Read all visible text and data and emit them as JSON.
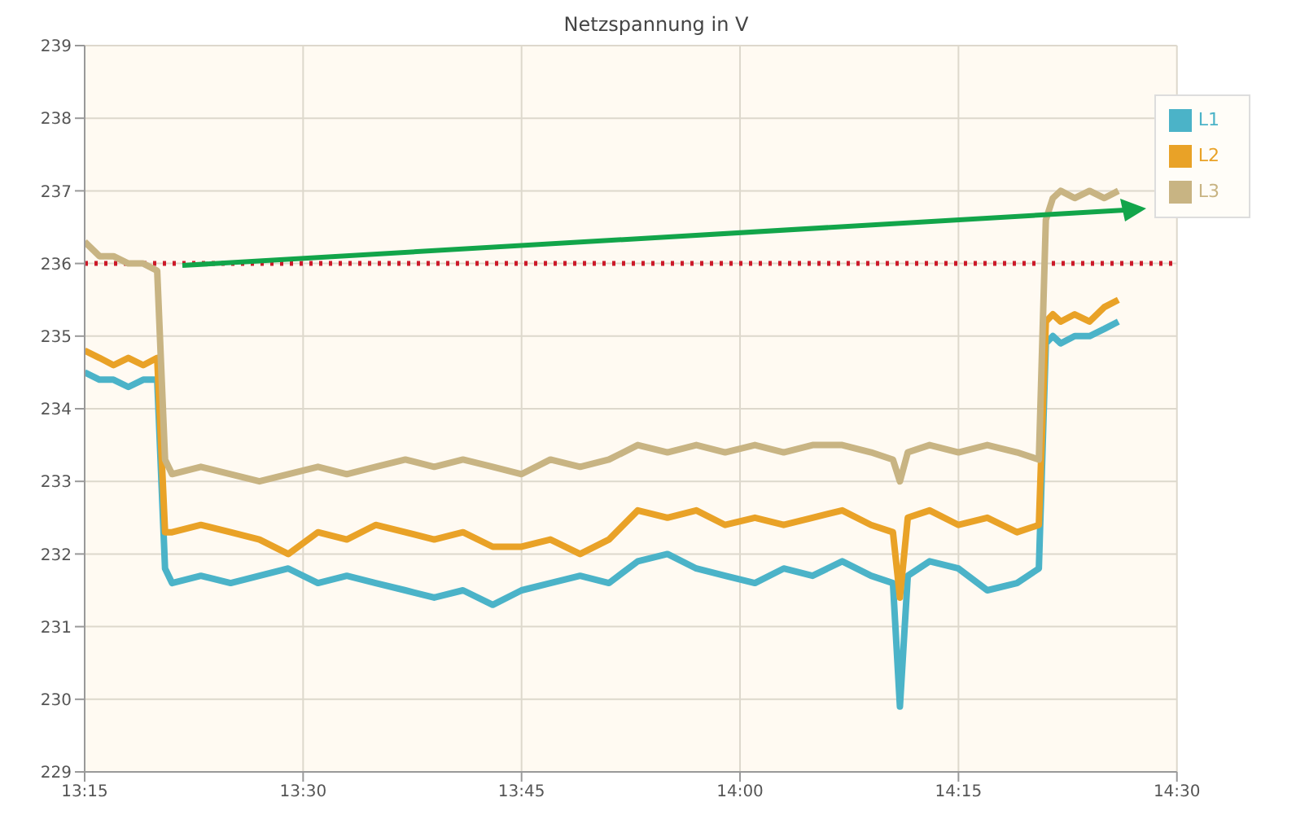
{
  "chart_data": {
    "type": "line",
    "title": "Netzspannung in V",
    "x": [
      13.25,
      13.267,
      13.283,
      13.3,
      13.317,
      13.333,
      13.342,
      13.35,
      13.383,
      13.417,
      13.45,
      13.483,
      13.517,
      13.55,
      13.583,
      13.617,
      13.65,
      13.683,
      13.717,
      13.75,
      13.783,
      13.817,
      13.85,
      13.883,
      13.917,
      13.95,
      13.983,
      14.017,
      14.05,
      14.083,
      14.117,
      14.15,
      14.175,
      14.183,
      14.192,
      14.217,
      14.25,
      14.283,
      14.317,
      14.342,
      14.35,
      14.358,
      14.367,
      14.383,
      14.4,
      14.417,
      14.433
    ],
    "series": [
      {
        "name": "L1",
        "color": "#4bb3c8",
        "values": [
          234.5,
          234.4,
          234.4,
          234.3,
          234.4,
          234.4,
          231.8,
          231.6,
          231.7,
          231.6,
          231.7,
          231.8,
          231.6,
          231.7,
          231.6,
          231.5,
          231.4,
          231.5,
          231.3,
          231.5,
          231.6,
          231.7,
          231.6,
          231.9,
          232.0,
          231.8,
          231.7,
          231.6,
          231.8,
          231.7,
          231.9,
          231.7,
          231.6,
          229.9,
          231.7,
          231.9,
          231.8,
          231.5,
          231.6,
          231.8,
          234.9,
          235.0,
          234.9,
          235.0,
          235.0,
          235.1,
          235.2
        ]
      },
      {
        "name": "L2",
        "color": "#e9a227",
        "values": [
          234.8,
          234.7,
          234.6,
          234.7,
          234.6,
          234.7,
          232.3,
          232.3,
          232.4,
          232.3,
          232.2,
          232.0,
          232.3,
          232.2,
          232.4,
          232.3,
          232.2,
          232.3,
          232.1,
          232.1,
          232.2,
          232.0,
          232.2,
          232.6,
          232.5,
          232.6,
          232.4,
          232.5,
          232.4,
          232.5,
          232.6,
          232.4,
          232.3,
          231.4,
          232.5,
          232.6,
          232.4,
          232.5,
          232.3,
          232.4,
          235.2,
          235.3,
          235.2,
          235.3,
          235.2,
          235.4,
          235.5
        ]
      },
      {
        "name": "L3",
        "color": "#c8b483",
        "values": [
          236.3,
          236.1,
          236.1,
          236.0,
          236.0,
          235.9,
          233.3,
          233.1,
          233.2,
          233.1,
          233.0,
          233.1,
          233.2,
          233.1,
          233.2,
          233.3,
          233.2,
          233.3,
          233.2,
          233.1,
          233.3,
          233.2,
          233.3,
          233.5,
          233.4,
          233.5,
          233.4,
          233.5,
          233.4,
          233.5,
          233.5,
          233.4,
          233.3,
          233.0,
          233.4,
          233.5,
          233.4,
          233.5,
          233.4,
          233.3,
          236.6,
          236.9,
          237.0,
          236.9,
          237.0,
          236.9,
          237.0
        ]
      }
    ],
    "xlim": [
      13.25,
      14.5
    ],
    "xticks": [
      {
        "value": 13.25,
        "label": "13:15"
      },
      {
        "value": 13.5,
        "label": "13:30"
      },
      {
        "value": 13.75,
        "label": "13:45"
      },
      {
        "value": 14,
        "label": "14:00"
      },
      {
        "value": 14.25,
        "label": "14:15"
      },
      {
        "value": 14.5,
        "label": "14:30"
      }
    ],
    "ylim": [
      229,
      239
    ],
    "yticks": [
      229,
      230,
      231,
      232,
      233,
      234,
      235,
      236,
      237,
      238,
      239
    ],
    "ref_lines": [
      {
        "axis": "y",
        "value": 236,
        "color": "#cc1a2a",
        "line_style": "dotted"
      }
    ],
    "grid": true,
    "legend": "top right"
  }
}
